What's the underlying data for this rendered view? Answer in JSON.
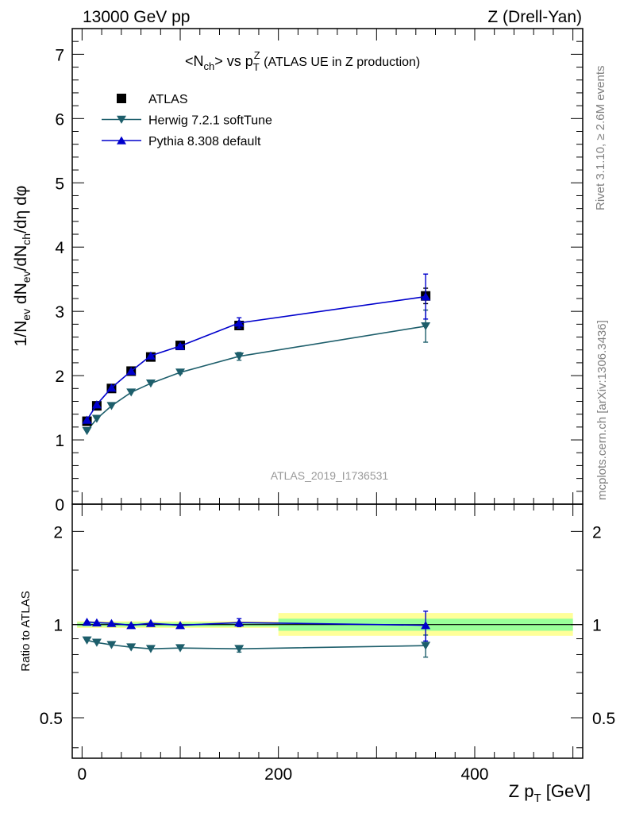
{
  "header": {
    "left": "13000 GeV pp",
    "right": "Z (Drell-Yan)"
  },
  "title": {
    "prefix": "<N",
    "sub": "ch",
    "mid": "> vs p",
    "t_sub": "T",
    "z_sup": "Z",
    "suffix": " (ATLAS UE in Z production)"
  },
  "side_labels": {
    "rivet": "Rivet 3.1.10, ≥ 2.6M events",
    "mcplots": "mcplots.cern.ch [arXiv:1306.3436]"
  },
  "watermark": "ATLAS_2019_I1736531",
  "ylabel_top": {
    "p1": "1/N",
    "s1": "ev",
    "p2": " dN",
    "s2": "ev",
    "p3": "/dN",
    "s3": "ch",
    "p4": "/dη dφ"
  },
  "ylabel_bottom": "Ratio to ATLAS",
  "xlabel": {
    "main": "Z p",
    "sub": "T",
    "unit": " [GeV]"
  },
  "legend": [
    {
      "label": "ATLAS",
      "marker": "square",
      "color": "#000000"
    },
    {
      "label": "Herwig 7.2.1 softTune",
      "marker": "triangle-down",
      "color": "#1d5e6b"
    },
    {
      "label": "Pythia 8.308 default",
      "marker": "triangle-up",
      "color": "#0000cc"
    }
  ],
  "colors": {
    "atlas": "#000000",
    "herwig": "#1d5e6b",
    "pythia": "#0000cc",
    "band_inner": "#99ff99",
    "band_outer": "#ffff99"
  },
  "chart_data": {
    "type": "line",
    "x": [
      5,
      15,
      30,
      50,
      70,
      100,
      160,
      350
    ],
    "xlim": [
      -10,
      510
    ],
    "x_ticks": [
      0,
      200,
      400
    ],
    "top_panel": {
      "ylim": [
        0,
        7.4
      ],
      "y_ticks": [
        0,
        1,
        2,
        3,
        4,
        5,
        6,
        7
      ],
      "series": [
        {
          "name": "ATLAS",
          "values": [
            1.29,
            1.53,
            1.8,
            2.07,
            2.29,
            2.47,
            2.78,
            3.24
          ],
          "errors": [
            0.02,
            0.02,
            0.02,
            0.03,
            0.03,
            0.04,
            0.06,
            0.12
          ]
        },
        {
          "name": "Herwig 7.2.1 softTune",
          "values": [
            1.14,
            1.33,
            1.53,
            1.74,
            1.88,
            2.05,
            2.3,
            2.77
          ],
          "errors": [
            0.01,
            0.01,
            0.01,
            0.01,
            0.01,
            0.02,
            0.06,
            0.25
          ]
        },
        {
          "name": "Pythia 8.308 default",
          "values": [
            1.31,
            1.55,
            1.81,
            2.07,
            2.31,
            2.46,
            2.82,
            3.23
          ],
          "errors": [
            0.01,
            0.01,
            0.01,
            0.01,
            0.01,
            0.02,
            0.08,
            0.35
          ]
        }
      ]
    },
    "ratio_panel": {
      "ylim": [
        0.37,
        2.45
      ],
      "log_scale": true,
      "y_ticks": [
        0.5,
        1,
        2
      ],
      "bands": [
        {
          "x": [
            -5,
            200
          ],
          "inner": [
            0.985,
            1.015
          ],
          "outer": [
            0.975,
            1.025
          ]
        },
        {
          "x": [
            200,
            500
          ],
          "inner": [
            0.955,
            1.045
          ],
          "outer": [
            0.92,
            1.09
          ]
        }
      ],
      "series": [
        {
          "name": "Herwig 7.2.1 softTune",
          "values": [
            0.89,
            0.875,
            0.86,
            0.845,
            0.835,
            0.84,
            0.835,
            0.855
          ],
          "errors": [
            0.005,
            0.005,
            0.005,
            0.005,
            0.005,
            0.006,
            0.02,
            0.07
          ]
        },
        {
          "name": "Pythia 8.308 default",
          "values": [
            1.02,
            1.015,
            1.01,
            0.995,
            1.01,
            0.995,
            1.015,
            0.995
          ],
          "errors": [
            0.005,
            0.005,
            0.005,
            0.005,
            0.005,
            0.006,
            0.03,
            0.11
          ]
        }
      ]
    }
  }
}
